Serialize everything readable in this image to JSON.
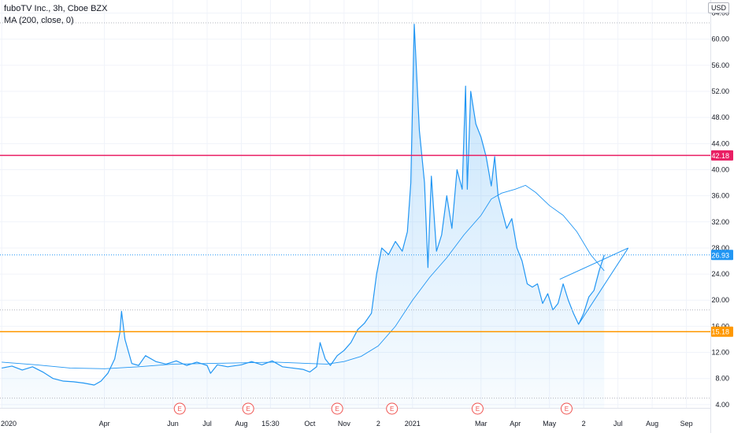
{
  "legend": {
    "symbol": "fuboTV Inc., 3h, Cboe BZX",
    "indicator": "MA (200, close, 0)"
  },
  "currency_button": "USD",
  "chart_data": {
    "type": "area",
    "ylim": [
      3.5,
      66
    ],
    "y_ticks": [
      4,
      8,
      12,
      16,
      20,
      24,
      28,
      32,
      36,
      40,
      44,
      48,
      52,
      56,
      60,
      64
    ],
    "x_ticks": [
      {
        "t": 0,
        "label": "2020"
      },
      {
        "t": 3,
        "label": "Apr"
      },
      {
        "t": 5,
        "label": "Jun"
      },
      {
        "t": 6,
        "label": "Jul"
      },
      {
        "t": 7,
        "label": "Aug"
      },
      {
        "t": 7.85,
        "label": "15:30"
      },
      {
        "t": 9,
        "label": "Oct"
      },
      {
        "t": 10,
        "label": "Nov"
      },
      {
        "t": 11,
        "label": "2"
      },
      {
        "t": 12,
        "label": "2021"
      },
      {
        "t": 14,
        "label": "Mar"
      },
      {
        "t": 15,
        "label": "Apr"
      },
      {
        "t": 16,
        "label": "May"
      },
      {
        "t": 17,
        "label": "2"
      },
      {
        "t": 18,
        "label": "Jul"
      },
      {
        "t": 19,
        "label": "Aug"
      },
      {
        "t": 20,
        "label": "Sep"
      }
    ],
    "earnings_markers": [
      {
        "t": 5.2,
        "label": "E"
      },
      {
        "t": 7.2,
        "label": "E"
      },
      {
        "t": 9.8,
        "label": "E"
      },
      {
        "t": 11.4,
        "label": "E"
      },
      {
        "t": 13.9,
        "label": "E"
      },
      {
        "t": 16.5,
        "label": "E"
      }
    ],
    "horizontal_lines": [
      {
        "value": 42.18,
        "label": "42.18",
        "color": "#e91e63",
        "style": "solid"
      },
      {
        "value": 26.93,
        "label": "26.93",
        "color": "#2196f3",
        "style": "dotted"
      },
      {
        "value": 15.18,
        "label": "15.18",
        "color": "#ff9800",
        "style": "solid"
      },
      {
        "value": 62.5,
        "label": "",
        "color": "#b2b5be",
        "style": "dotted"
      },
      {
        "value": 18.5,
        "label": "",
        "color": "#b2b5be",
        "style": "dotted"
      },
      {
        "value": 5.0,
        "label": "",
        "color": "#b2b5be",
        "style": "dotted"
      }
    ],
    "price_series": [
      [
        0.0,
        9.6
      ],
      [
        0.3,
        9.9
      ],
      [
        0.6,
        9.3
      ],
      [
        0.9,
        9.8
      ],
      [
        1.2,
        9.0
      ],
      [
        1.5,
        8.0
      ],
      [
        1.8,
        7.6
      ],
      [
        2.1,
        7.5
      ],
      [
        2.4,
        7.3
      ],
      [
        2.7,
        7.0
      ],
      [
        2.9,
        7.6
      ],
      [
        3.1,
        8.8
      ],
      [
        3.3,
        11.0
      ],
      [
        3.45,
        15.0
      ],
      [
        3.5,
        18.3
      ],
      [
        3.6,
        14.0
      ],
      [
        3.8,
        10.3
      ],
      [
        4.0,
        10.0
      ],
      [
        4.2,
        11.5
      ],
      [
        4.5,
        10.6
      ],
      [
        4.8,
        10.2
      ],
      [
        5.1,
        10.7
      ],
      [
        5.4,
        10.0
      ],
      [
        5.7,
        10.5
      ],
      [
        6.0,
        10.0
      ],
      [
        6.1,
        8.8
      ],
      [
        6.3,
        10.1
      ],
      [
        6.6,
        9.8
      ],
      [
        7.0,
        10.1
      ],
      [
        7.3,
        10.6
      ],
      [
        7.6,
        10.1
      ],
      [
        7.9,
        10.7
      ],
      [
        8.2,
        9.8
      ],
      [
        8.5,
        9.6
      ],
      [
        8.8,
        9.4
      ],
      [
        9.0,
        9.0
      ],
      [
        9.2,
        9.8
      ],
      [
        9.3,
        13.5
      ],
      [
        9.45,
        11.0
      ],
      [
        9.6,
        10.0
      ],
      [
        9.8,
        11.5
      ],
      [
        10.0,
        12.3
      ],
      [
        10.2,
        13.5
      ],
      [
        10.4,
        15.5
      ],
      [
        10.6,
        16.5
      ],
      [
        10.8,
        18.0
      ],
      [
        10.95,
        24.0
      ],
      [
        11.1,
        28.0
      ],
      [
        11.3,
        27.0
      ],
      [
        11.5,
        29.0
      ],
      [
        11.7,
        27.5
      ],
      [
        11.85,
        30.5
      ],
      [
        11.95,
        38.0
      ],
      [
        12.05,
        62.3
      ],
      [
        12.2,
        46.0
      ],
      [
        12.35,
        38.0
      ],
      [
        12.45,
        25.0
      ],
      [
        12.55,
        39.0
      ],
      [
        12.7,
        27.5
      ],
      [
        12.85,
        30.0
      ],
      [
        13.0,
        36.0
      ],
      [
        13.15,
        31.0
      ],
      [
        13.3,
        40.0
      ],
      [
        13.45,
        37.0
      ],
      [
        13.55,
        52.8
      ],
      [
        13.6,
        37.0
      ],
      [
        13.7,
        52.0
      ],
      [
        13.85,
        47.0
      ],
      [
        14.0,
        45.0
      ],
      [
        14.15,
        42.0
      ],
      [
        14.3,
        37.5
      ],
      [
        14.4,
        42.0
      ],
      [
        14.5,
        36.0
      ],
      [
        14.6,
        34.0
      ],
      [
        14.75,
        31.0
      ],
      [
        14.9,
        32.5
      ],
      [
        15.05,
        28.0
      ],
      [
        15.2,
        26.0
      ],
      [
        15.35,
        22.5
      ],
      [
        15.5,
        22.0
      ],
      [
        15.65,
        22.5
      ],
      [
        15.8,
        19.5
      ],
      [
        15.95,
        21.0
      ],
      [
        16.1,
        18.5
      ],
      [
        16.25,
        19.5
      ],
      [
        16.4,
        22.5
      ],
      [
        16.55,
        20.0
      ],
      [
        16.7,
        18.0
      ],
      [
        16.85,
        16.3
      ],
      [
        17.0,
        18.0
      ],
      [
        17.15,
        20.5
      ],
      [
        17.3,
        21.5
      ],
      [
        17.45,
        24.5
      ],
      [
        17.6,
        26.93
      ]
    ],
    "ma_series": [
      [
        0.0,
        10.5
      ],
      [
        1.0,
        10.1
      ],
      [
        2.0,
        9.6
      ],
      [
        3.0,
        9.5
      ],
      [
        4.0,
        9.8
      ],
      [
        5.0,
        10.2
      ],
      [
        6.0,
        10.3
      ],
      [
        7.0,
        10.4
      ],
      [
        8.0,
        10.5
      ],
      [
        9.0,
        10.3
      ],
      [
        9.5,
        10.2
      ],
      [
        10.0,
        10.6
      ],
      [
        10.5,
        11.4
      ],
      [
        11.0,
        13.0
      ],
      [
        11.5,
        16.0
      ],
      [
        12.0,
        20.0
      ],
      [
        12.5,
        23.5
      ],
      [
        13.0,
        26.5
      ],
      [
        13.5,
        30.0
      ],
      [
        14.0,
        33.0
      ],
      [
        14.3,
        35.5
      ],
      [
        14.6,
        36.4
      ],
      [
        15.0,
        37.0
      ],
      [
        15.3,
        37.6
      ],
      [
        15.6,
        36.5
      ],
      [
        16.0,
        34.5
      ],
      [
        16.4,
        33.0
      ],
      [
        16.8,
        30.5
      ],
      [
        17.2,
        27.0
      ],
      [
        17.6,
        24.5
      ]
    ],
    "trend_lines": [
      {
        "from": [
          16.3,
          23.2
        ],
        "to": [
          18.3,
          28.0
        ]
      },
      {
        "from": [
          16.85,
          16.3
        ],
        "to": [
          18.3,
          28.0
        ]
      }
    ]
  }
}
